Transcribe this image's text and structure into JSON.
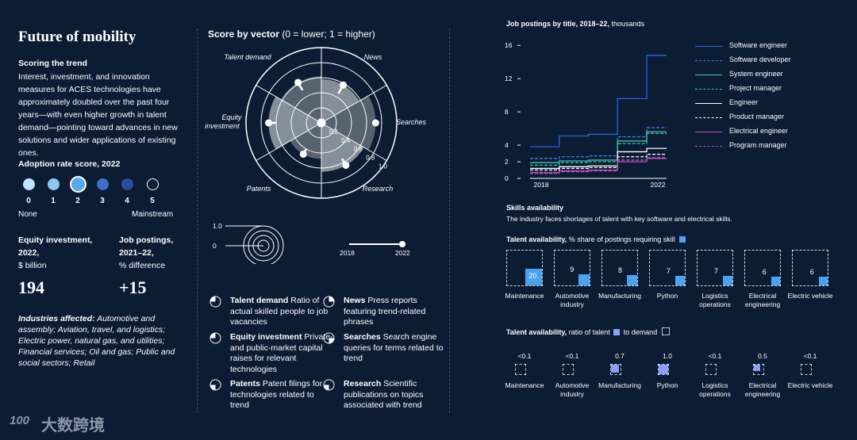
{
  "left": {
    "title": "Future of mobility",
    "scoring_heading": "Scoring the trend",
    "scoring_text": "Interest, investment, and innovation measures for ACES technologies have approximately doubled over the past four years—with even higher growth in talent demand—pointing toward advances in new solutions and wider applications of existing ones.",
    "adoption_heading": "Adoption rate score, 2022",
    "adoption_levels": [
      "0",
      "1",
      "2",
      "3",
      "4",
      "5"
    ],
    "adoption_selected": 2,
    "adoption_low": "None",
    "adoption_high": "Mainstream",
    "equity_heading_1": "Equity investment,",
    "equity_heading_2": "2022,",
    "equity_unit": "$ billion",
    "equity_value": "194",
    "jobs_heading_1": "Job postings,",
    "jobs_heading_2": "2021–22,",
    "jobs_unit": "% difference",
    "jobs_value": "+15",
    "industries_label": "Industries affected:",
    "industries_text": " Automotive and assembly; Aviation, travel, and logistics; Electric power, natural gas, and utilities; Financial services; Oil and gas; Public and social sectors; Retail",
    "watermark": "大数跨境",
    "watermark_logo": "100"
  },
  "radar": {
    "title_bold": "Score by vector",
    "title_rest": " (0 = lower; 1 = higher)",
    "ring_labels": [
      "0.2",
      "0.4",
      "0.6",
      "0.8",
      "1.0"
    ],
    "key_scale_labels": [
      "1.0",
      "0"
    ],
    "key_years": [
      "2018",
      "2022"
    ],
    "legend": [
      {
        "name": "Talent demand",
        "desc": " Ratio of actual skilled people to job vacancies"
      },
      {
        "name": "Equity investment",
        "desc": " Private- and public-market capital raises for relevant technologies"
      },
      {
        "name": "Patents",
        "desc": " Patent filings for technologies related to trend"
      },
      {
        "name": "News",
        "desc": " Press reports featuring trend-related phrases"
      },
      {
        "name": "Searches",
        "desc": " Search engine queries for terms related to trend"
      },
      {
        "name": "Research",
        "desc": " Scientific publications on topics associated with trend"
      }
    ]
  },
  "right": {
    "jobs_title_bold": "Job postings by title, 2018–22,",
    "jobs_title_rest": " thousands",
    "skills_heading": "Skills availability",
    "skills_sub": "The industry faces shortages of talent with key software and electrical skills.",
    "talent_avail_bold": "Talent availability,",
    "talent_avail_rest": " % share of postings requiring skill",
    "ratio_bold": "Talent availability,",
    "ratio_rest_1": " ratio of talent",
    "ratio_rest_2": " to demand",
    "skills": [
      {
        "name": "Maintenance",
        "share": 20,
        "share_label": "20",
        "ratio": "<0.1",
        "ratio_val": 0.05
      },
      {
        "name": "Automotive industry",
        "share": 9,
        "share_label": "9",
        "ratio": "<0.1",
        "ratio_val": 0.05
      },
      {
        "name": "Manufacturing",
        "share": 8,
        "share_label": "8",
        "ratio": "0.7",
        "ratio_val": 0.7
      },
      {
        "name": "Python",
        "share": 7,
        "share_label": "7",
        "ratio": "1.0",
        "ratio_val": 1.0
      },
      {
        "name": "Logistics operations",
        "share": 7,
        "share_label": "7",
        "ratio": "<0.1",
        "ratio_val": 0.05
      },
      {
        "name": "Electrical engineering",
        "share": 6,
        "share_label": "6",
        "ratio": "0.5",
        "ratio_val": 0.5
      },
      {
        "name": "Electric vehicle",
        "share": 6,
        "share_label": "6",
        "ratio": "<0.1",
        "ratio_val": 0.05
      }
    ]
  },
  "chart_data": [
    {
      "type": "radar",
      "title": "Score by vector (0 = lower; 1 = higher)",
      "axes": [
        "Talent demand",
        "News",
        "Searches",
        "Research",
        "Patents",
        "Equity investment"
      ],
      "series": [
        {
          "name": "2018",
          "values": [
            0.5,
            0.45,
            0.7,
            0.55,
            0.4,
            0.6
          ]
        },
        {
          "name": "2022",
          "values": [
            0.62,
            0.58,
            0.72,
            0.65,
            0.48,
            0.7
          ]
        }
      ],
      "ylim": [
        0,
        1
      ]
    },
    {
      "type": "line",
      "title": "Job postings by title, 2018–22, thousands",
      "x": [
        2018,
        2019,
        2020,
        2021,
        2022
      ],
      "xticks": [
        "2018",
        "2022"
      ],
      "yticks": [
        "0",
        "2",
        "4",
        "8",
        "12",
        "16"
      ],
      "ylim": [
        0,
        16.5
      ],
      "series": [
        {
          "name": "Software engineer",
          "style": "solid",
          "color": "#2f5fe6",
          "values": [
            3.8,
            5.1,
            5.3,
            9.6,
            14.8
          ]
        },
        {
          "name": "Software developer",
          "style": "dashed",
          "color": "#4a7af0",
          "values": [
            2.4,
            2.6,
            2.7,
            5.0,
            6.1
          ]
        },
        {
          "name": "System engineer",
          "style": "solid",
          "color": "#3cc9a8",
          "values": [
            1.9,
            2.1,
            2.2,
            4.5,
            5.6
          ]
        },
        {
          "name": "Project manager",
          "style": "dashed",
          "color": "#3cc9a8",
          "values": [
            1.6,
            1.9,
            2.0,
            4.2,
            5.4
          ]
        },
        {
          "name": "Engineer",
          "style": "solid",
          "color": "#ffffff",
          "values": [
            1.2,
            1.4,
            1.5,
            3.2,
            3.6
          ]
        },
        {
          "name": "Product manager",
          "style": "dashed",
          "color": "#ffffff",
          "values": [
            1.0,
            1.2,
            1.3,
            2.6,
            2.9
          ]
        },
        {
          "name": "Electrical engineer",
          "style": "solid",
          "color": "#c04fc0",
          "values": [
            0.7,
            0.9,
            1.0,
            2.0,
            2.4
          ]
        },
        {
          "name": "Program manager",
          "style": "dashed",
          "color": "#c04fc0",
          "values": [
            0.6,
            0.8,
            0.9,
            2.2,
            2.5
          ]
        }
      ]
    },
    {
      "type": "bar",
      "title": "Talent availability, % share of postings requiring skill",
      "categories": [
        "Maintenance",
        "Automotive industry",
        "Manufacturing",
        "Python",
        "Logistics operations",
        "Electrical engineering",
        "Electric vehicle"
      ],
      "values": [
        20,
        9,
        8,
        7,
        7,
        6,
        6
      ]
    },
    {
      "type": "bar",
      "title": "Talent availability, ratio of talent to demand",
      "categories": [
        "Maintenance",
        "Automotive industry",
        "Manufacturing",
        "Python",
        "Logistics operations",
        "Electrical engineering",
        "Electric vehicle"
      ],
      "values": [
        0.05,
        0.05,
        0.7,
        1.0,
        0.05,
        0.5,
        0.05
      ],
      "value_labels": [
        "<0.1",
        "<0.1",
        "0.7",
        "1.0",
        "<0.1",
        "0.5",
        "<0.1"
      ]
    }
  ]
}
